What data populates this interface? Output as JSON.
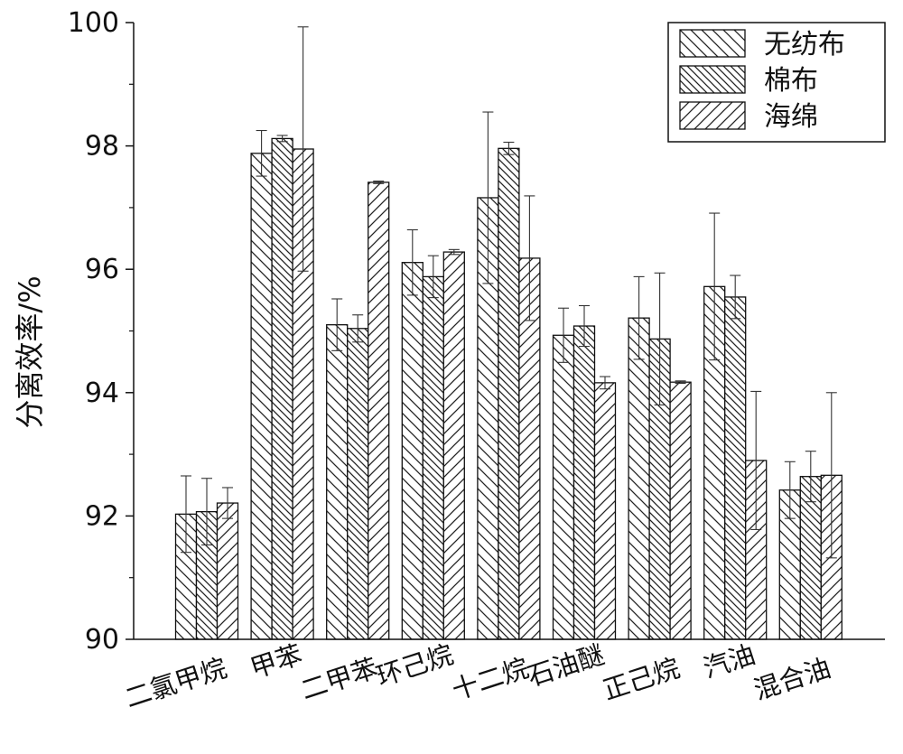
{
  "chart_data": {
    "type": "bar",
    "title": "",
    "xlabel": "",
    "ylabel": "分离效率/%",
    "ylim": [
      90,
      100
    ],
    "yticks": [
      90,
      92,
      94,
      96,
      98,
      100
    ],
    "grid": false,
    "legend_position": "top-right",
    "categories": [
      "二氯甲烷",
      "甲苯",
      "二甲苯",
      "环己烷",
      "十二烷",
      "石油醚",
      "正己烷",
      "汽油",
      "混合油"
    ],
    "series": [
      {
        "name": "无纺布",
        "pattern": "back-diagonal",
        "values": [
          92.03,
          97.88,
          95.1,
          96.11,
          97.16,
          94.93,
          95.21,
          95.72,
          92.42
        ],
        "errors": [
          0.62,
          0.37,
          0.42,
          0.53,
          1.39,
          0.44,
          0.67,
          1.19,
          0.46
        ]
      },
      {
        "name": "棉布",
        "pattern": "dense-back-diagonal",
        "values": [
          92.07,
          98.12,
          95.04,
          95.88,
          97.96,
          95.08,
          94.87,
          95.55,
          92.64
        ],
        "errors": [
          0.54,
          0.05,
          0.22,
          0.34,
          0.1,
          0.33,
          1.07,
          0.35,
          0.41
        ]
      },
      {
        "name": "海绵",
        "pattern": "forward-diagonal",
        "values": [
          92.21,
          97.95,
          97.41,
          96.28,
          96.18,
          94.16,
          94.17,
          92.9,
          92.66
        ],
        "errors": [
          0.25,
          1.98,
          0.02,
          0.04,
          1.01,
          0.1,
          0.02,
          1.12,
          1.34
        ]
      }
    ]
  }
}
